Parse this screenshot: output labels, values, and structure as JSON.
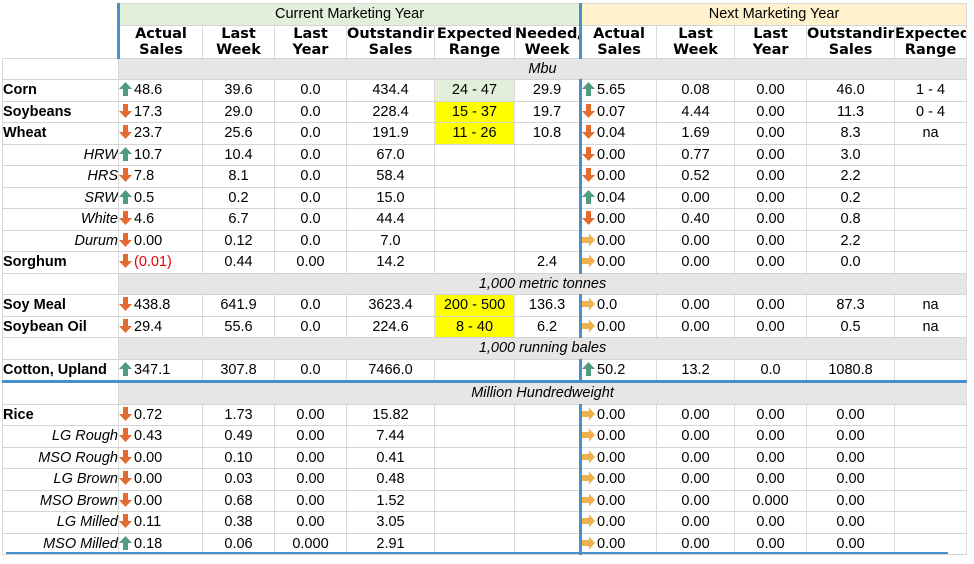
{
  "colors": {
    "up": "#4f9d7e",
    "down": "#e26b2f",
    "flat": "#f0b04a",
    "current_header_bg": "#e2efda",
    "next_header_bg": "#fff2cc",
    "highlight": "#ffff00",
    "accent_border": "#4a90c8"
  },
  "headers": {
    "current": "Current Marketing Year",
    "next": "Next Marketing Year"
  },
  "columns": {
    "current": [
      {
        "l1": "Actual",
        "l2": "Sales"
      },
      {
        "l1": "Last",
        "l2": "Week"
      },
      {
        "l1": "Last",
        "l2": "Year"
      },
      {
        "l1": "Outstanding",
        "l2": "Sales"
      },
      {
        "l1": "Expected",
        "l2": "Range"
      },
      {
        "l1": "Needed/",
        "l2": "Week"
      }
    ],
    "next": [
      {
        "l1": "Actual",
        "l2": "Sales"
      },
      {
        "l1": "Last",
        "l2": "Week"
      },
      {
        "l1": "Last",
        "l2": "Year"
      },
      {
        "l1": "Outstanding",
        "l2": "Sales"
      },
      {
        "l1": "Expected",
        "l2": "Range"
      }
    ]
  },
  "units": {
    "mbu": "Mbu",
    "tonnes": "1,000 metric tonnes",
    "bales": "1,000 running bales",
    "cwt": "Million Hundredweight"
  },
  "sections": [
    {
      "unit_key": "mbu",
      "rows": [
        {
          "name": "Corn",
          "style": "lbl",
          "cur": {
            "dir": "up",
            "actual": "48.6",
            "red": false,
            "last_week": "39.6",
            "last_year": "0.0",
            "outstanding": "434.4",
            "range": "24 - 47",
            "range_hl": "green",
            "needed": "29.9"
          },
          "next": {
            "dir": "up",
            "actual": "5.65",
            "last_week": "0.08",
            "last_year": "0.00",
            "outstanding": "46.0",
            "range": "1 - 4"
          }
        },
        {
          "name": "Soybeans",
          "style": "lbl",
          "cur": {
            "dir": "down",
            "actual": "17.3",
            "red": false,
            "last_week": "29.0",
            "last_year": "0.0",
            "outstanding": "228.4",
            "range": "15 - 37",
            "range_hl": "yellow",
            "needed": "19.7"
          },
          "next": {
            "dir": "down",
            "actual": "0.07",
            "last_week": "4.44",
            "last_year": "0.00",
            "outstanding": "11.3",
            "range": "0 - 4"
          }
        },
        {
          "name": "Wheat",
          "style": "lbl",
          "cur": {
            "dir": "down",
            "actual": "23.7",
            "red": false,
            "last_week": "25.6",
            "last_year": "0.0",
            "outstanding": "191.9",
            "range": "11 - 26",
            "range_hl": "yellow",
            "needed": "10.8"
          },
          "next": {
            "dir": "down",
            "actual": "0.04",
            "last_week": "1.69",
            "last_year": "0.00",
            "outstanding": "8.3",
            "range": "na"
          }
        },
        {
          "name": "HRW",
          "style": "sub",
          "cur": {
            "dir": "up",
            "actual": "10.7",
            "red": false,
            "last_week": "10.4",
            "last_year": "0.0",
            "outstanding": "67.0",
            "range": "",
            "range_hl": "",
            "needed": ""
          },
          "next": {
            "dir": "down",
            "actual": "0.00",
            "last_week": "0.77",
            "last_year": "0.00",
            "outstanding": "3.0",
            "range": ""
          }
        },
        {
          "name": "HRS",
          "style": "sub",
          "cur": {
            "dir": "down",
            "actual": "7.8",
            "red": false,
            "last_week": "8.1",
            "last_year": "0.0",
            "outstanding": "58.4",
            "range": "",
            "range_hl": "",
            "needed": ""
          },
          "next": {
            "dir": "down",
            "actual": "0.00",
            "last_week": "0.52",
            "last_year": "0.00",
            "outstanding": "2.2",
            "range": ""
          }
        },
        {
          "name": "SRW",
          "style": "sub",
          "cur": {
            "dir": "up",
            "actual": "0.5",
            "red": false,
            "last_week": "0.2",
            "last_year": "0.0",
            "outstanding": "15.0",
            "range": "",
            "range_hl": "",
            "needed": ""
          },
          "next": {
            "dir": "up",
            "actual": "0.04",
            "last_week": "0.00",
            "last_year": "0.00",
            "outstanding": "0.2",
            "range": ""
          }
        },
        {
          "name": "White",
          "style": "sub",
          "cur": {
            "dir": "down",
            "actual": "4.6",
            "red": false,
            "last_week": "6.7",
            "last_year": "0.0",
            "outstanding": "44.4",
            "range": "",
            "range_hl": "",
            "needed": ""
          },
          "next": {
            "dir": "down",
            "actual": "0.00",
            "last_week": "0.40",
            "last_year": "0.00",
            "outstanding": "0.8",
            "range": ""
          }
        },
        {
          "name": "Durum",
          "style": "sub",
          "cur": {
            "dir": "down",
            "actual": "0.00",
            "red": false,
            "last_week": "0.12",
            "last_year": "0.0",
            "outstanding": "7.0",
            "range": "",
            "range_hl": "",
            "needed": ""
          },
          "next": {
            "dir": "flat",
            "actual": "0.00",
            "last_week": "0.00",
            "last_year": "0.00",
            "outstanding": "2.2",
            "range": ""
          }
        },
        {
          "name": "Sorghum",
          "style": "lbl",
          "cur": {
            "dir": "down",
            "actual": "(0.01)",
            "red": true,
            "last_week": "0.44",
            "last_year": "0.00",
            "outstanding": "14.2",
            "range": "",
            "range_hl": "",
            "needed": "2.4"
          },
          "next": {
            "dir": "flat",
            "actual": "0.00",
            "last_week": "0.00",
            "last_year": "0.00",
            "outstanding": "0.0",
            "range": ""
          }
        }
      ]
    },
    {
      "unit_key": "tonnes",
      "rows": [
        {
          "name": "Soy Meal",
          "style": "lbl",
          "cur": {
            "dir": "down",
            "actual": "438.8",
            "red": false,
            "last_week": "641.9",
            "last_year": "0.0",
            "outstanding": "3623.4",
            "range": "200 - 500",
            "range_hl": "yellow",
            "needed": "136.3"
          },
          "next": {
            "dir": "flat",
            "actual": "0.0",
            "last_week": "0.00",
            "last_year": "0.00",
            "outstanding": "87.3",
            "range": "na"
          }
        },
        {
          "name": "Soybean Oil",
          "style": "lbl",
          "cur": {
            "dir": "down",
            "actual": "29.4",
            "red": false,
            "last_week": "55.6",
            "last_year": "0.0",
            "outstanding": "224.6",
            "range": "8 - 40",
            "range_hl": "yellow",
            "needed": "6.2"
          },
          "next": {
            "dir": "flat",
            "actual": "0.00",
            "last_week": "0.00",
            "last_year": "0.00",
            "outstanding": "0.5",
            "range": "na"
          }
        }
      ]
    },
    {
      "unit_key": "bales",
      "rows": [
        {
          "name": "Cotton, Upland",
          "style": "lbl",
          "cur": {
            "dir": "up",
            "actual": "347.1",
            "red": false,
            "last_week": "307.8",
            "last_year": "0.0",
            "outstanding": "7466.0",
            "range": "",
            "range_hl": "",
            "needed": ""
          },
          "next": {
            "dir": "up",
            "actual": "50.2",
            "last_week": "13.2",
            "last_year": "0.0",
            "outstanding": "1080.8",
            "range": ""
          }
        }
      ]
    },
    {
      "unit_key": "cwt",
      "rows": [
        {
          "name": "Rice",
          "style": "lbl",
          "cur": {
            "dir": "down",
            "actual": "0.72",
            "red": false,
            "last_week": "1.73",
            "last_year": "0.00",
            "outstanding": "15.82",
            "range": "",
            "range_hl": "",
            "needed": ""
          },
          "next": {
            "dir": "flat",
            "actual": "0.00",
            "last_week": "0.00",
            "last_year": "0.00",
            "outstanding": "0.00",
            "range": ""
          }
        },
        {
          "name": "LG Rough",
          "style": "sub",
          "cur": {
            "dir": "down",
            "actual": "0.43",
            "red": false,
            "last_week": "0.49",
            "last_year": "0.00",
            "outstanding": "7.44",
            "range": "",
            "range_hl": "",
            "needed": ""
          },
          "next": {
            "dir": "flat",
            "actual": "0.00",
            "last_week": "0.00",
            "last_year": "0.00",
            "outstanding": "0.00",
            "range": ""
          }
        },
        {
          "name": "MSO Rough",
          "style": "sub",
          "cur": {
            "dir": "down",
            "actual": "0.00",
            "red": false,
            "last_week": "0.10",
            "last_year": "0.00",
            "outstanding": "0.41",
            "range": "",
            "range_hl": "",
            "needed": ""
          },
          "next": {
            "dir": "flat",
            "actual": "0.00",
            "last_week": "0.00",
            "last_year": "0.00",
            "outstanding": "0.00",
            "range": ""
          }
        },
        {
          "name": "LG Brown",
          "style": "sub",
          "cur": {
            "dir": "down",
            "actual": "0.00",
            "red": false,
            "last_week": "0.03",
            "last_year": "0.00",
            "outstanding": "0.48",
            "range": "",
            "range_hl": "",
            "needed": ""
          },
          "next": {
            "dir": "flat",
            "actual": "0.00",
            "last_week": "0.00",
            "last_year": "0.00",
            "outstanding": "0.00",
            "range": ""
          }
        },
        {
          "name": "MSO Brown",
          "style": "sub",
          "cur": {
            "dir": "down",
            "actual": "0.00",
            "red": false,
            "last_week": "0.68",
            "last_year": "0.00",
            "outstanding": "1.52",
            "range": "",
            "range_hl": "",
            "needed": ""
          },
          "next": {
            "dir": "flat",
            "actual": "0.00",
            "last_week": "0.00",
            "last_year": "0.000",
            "outstanding": "0.00",
            "range": ""
          }
        },
        {
          "name": "LG Milled",
          "style": "sub",
          "cur": {
            "dir": "down",
            "actual": "0.11",
            "red": false,
            "last_week": "0.38",
            "last_year": "0.00",
            "outstanding": "3.05",
            "range": "",
            "range_hl": "",
            "needed": ""
          },
          "next": {
            "dir": "flat",
            "actual": "0.00",
            "last_week": "0.00",
            "last_year": "0.00",
            "outstanding": "0.00",
            "range": ""
          }
        },
        {
          "name": "MSO Milled",
          "style": "sub",
          "cur": {
            "dir": "up",
            "actual": "0.18",
            "red": false,
            "last_week": "0.06",
            "last_year": "0.000",
            "outstanding": "2.91",
            "range": "",
            "range_hl": "",
            "needed": ""
          },
          "next": {
            "dir": "flat",
            "actual": "0.00",
            "last_week": "0.00",
            "last_year": "0.00",
            "outstanding": "0.00",
            "range": ""
          }
        }
      ]
    }
  ]
}
